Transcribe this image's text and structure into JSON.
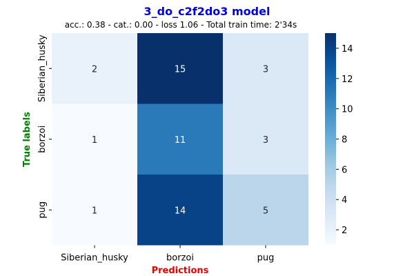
{
  "chart_data": {
    "type": "heatmap",
    "title": "3_do_c2f2do3 model",
    "subtitle": "acc.: 0.38 - cat.: 0.00 - loss 1.06 - Total train time: 2'34s",
    "xlabel": "Predictions",
    "ylabel": "True labels",
    "x_categories": [
      "Siberian_husky",
      "borzoi",
      "pug"
    ],
    "y_categories": [
      "Siberian_husky",
      "borzoi",
      "pug"
    ],
    "values": [
      [
        2,
        15,
        3
      ],
      [
        1,
        11,
        3
      ],
      [
        1,
        14,
        5
      ]
    ],
    "colormap": "Blues",
    "color_range": [
      1,
      15
    ],
    "colorbar_ticks": [
      2,
      4,
      6,
      8,
      10,
      12,
      14
    ],
    "colors": {
      "title": "#0000e6",
      "xlabel": "#e60000",
      "ylabel": "#008000"
    }
  }
}
